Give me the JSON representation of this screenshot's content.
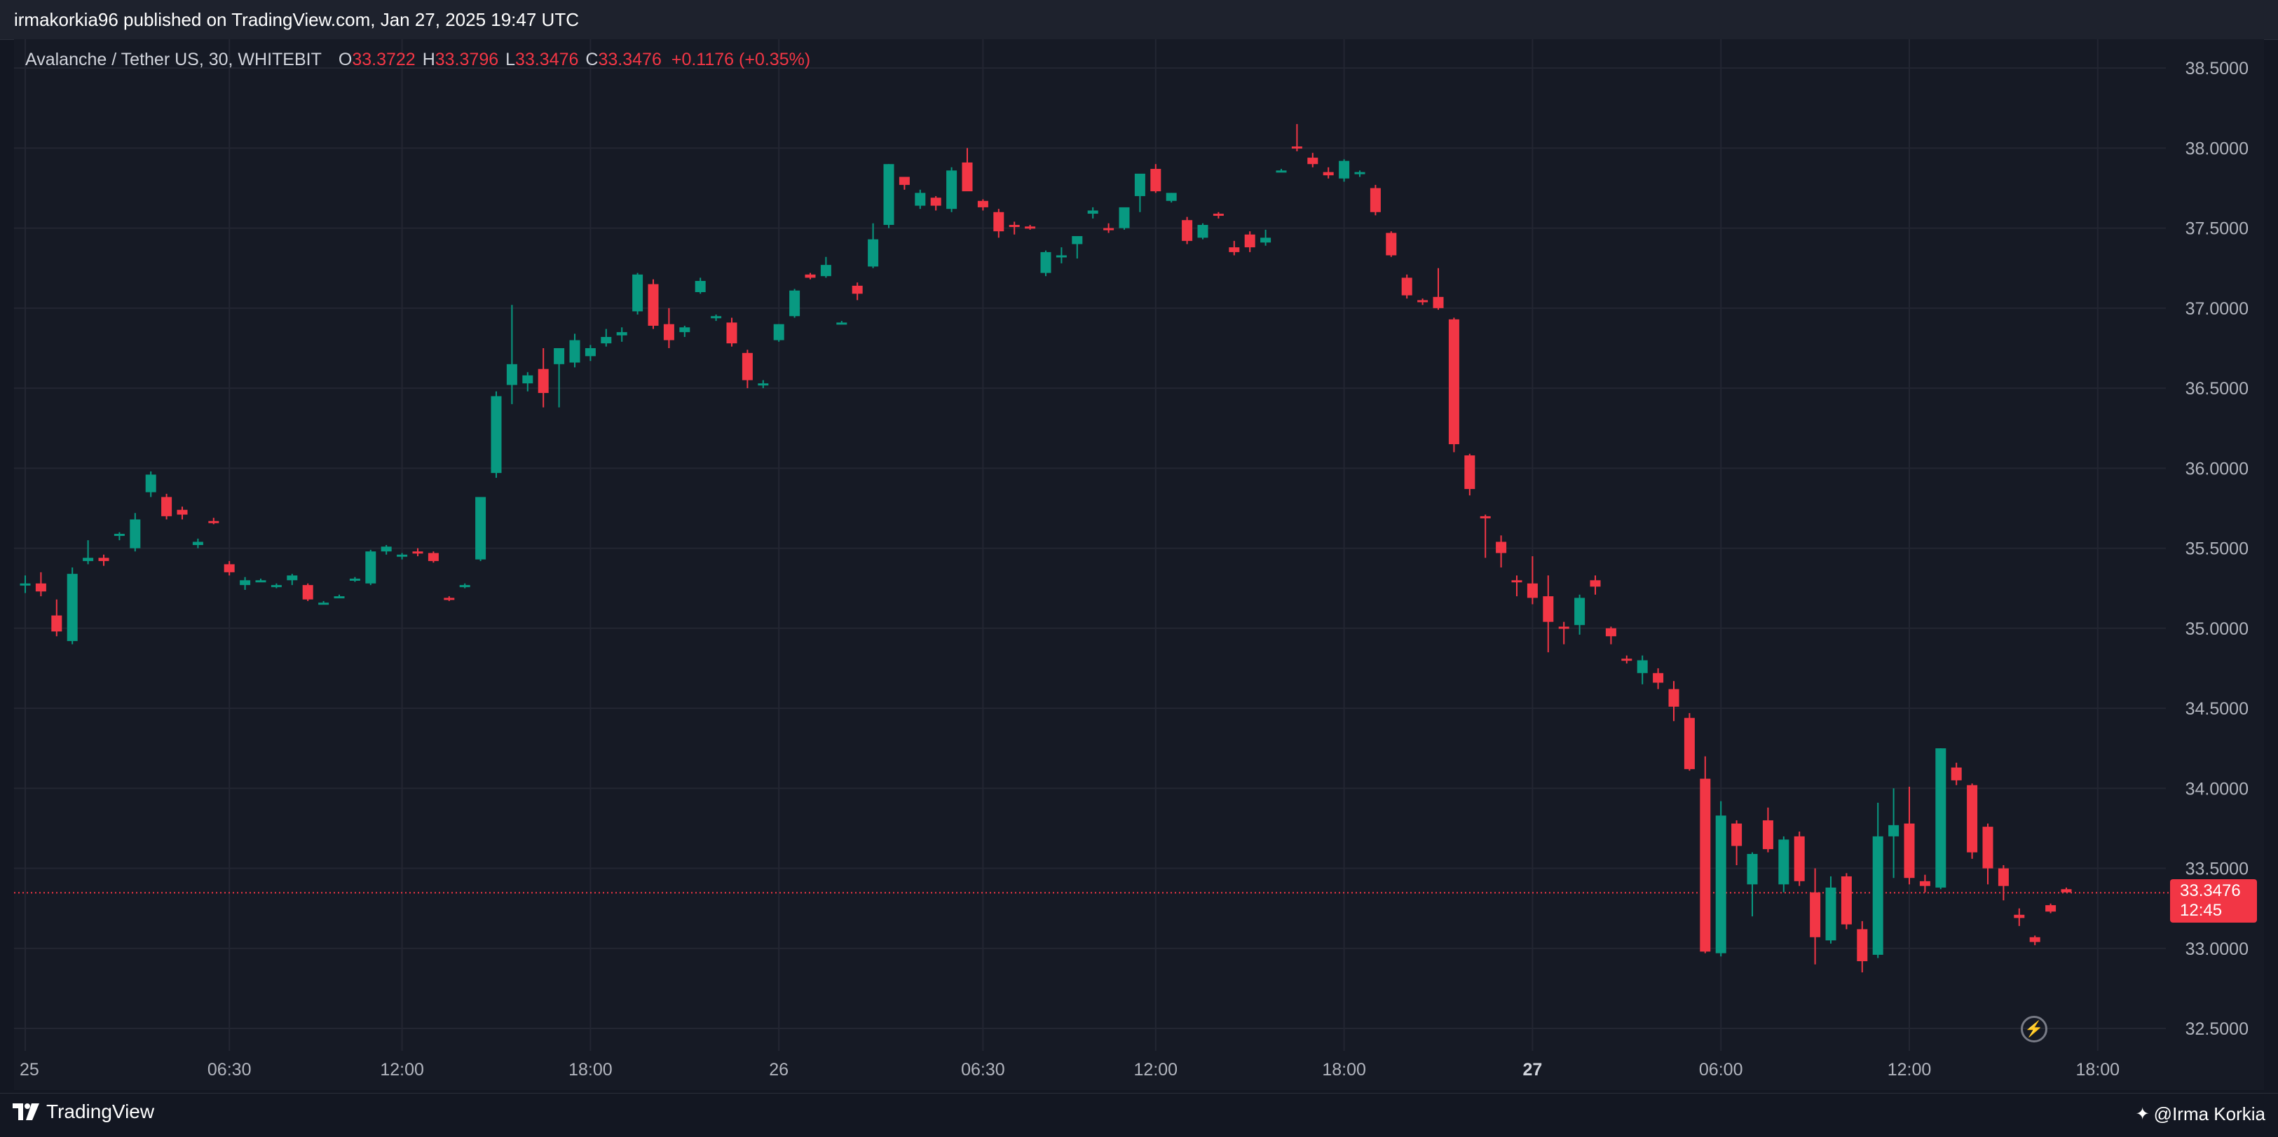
{
  "publish_bar": {
    "text": "irmakorkia96 published on TradingView.com, Jan 27, 2025 19:47 UTC"
  },
  "legend": {
    "symbol": "Avalanche / Tether US, 30, WHITEBIT",
    "open_label": "O",
    "open_value": "33.3722",
    "high_label": "H",
    "high_value": "33.3796",
    "low_label": "L",
    "low_value": "33.3476",
    "close_label": "C",
    "close_value": "33.3476",
    "change": "+0.1176 (+0.35%)"
  },
  "price_tag": {
    "price": "33.3476",
    "countdown": "12:45"
  },
  "footer": {
    "brand": "TradingView",
    "author": "@Irma Korkia"
  },
  "colors": {
    "background": "#131722",
    "up": "#089981",
    "down": "#f23645",
    "grid": "#232632",
    "axis_text": "#b2b5be"
  },
  "icons": {
    "tv_logo": "tradingview-logo-icon",
    "flash": "lightning-icon",
    "author": "star-icon"
  },
  "chart_data": {
    "type": "candlestick",
    "symbol": "Avalanche / Tether US",
    "interval": "30",
    "exchange": "WHITEBIT",
    "y_axis": {
      "ticks": [
        "38.5000",
        "38.0000",
        "37.5000",
        "37.0000",
        "36.5000",
        "36.0000",
        "35.5000",
        "35.0000",
        "34.5000",
        "34.0000",
        "33.5000",
        "33.0000",
        "32.5000"
      ],
      "range": [
        32.36,
        38.68
      ]
    },
    "x_axis": {
      "ticks": [
        {
          "label": "25",
          "bar": 0,
          "bold": false
        },
        {
          "label": "06:30",
          "bar": 13,
          "bold": false
        },
        {
          "label": "12:00",
          "bar": 24,
          "bold": false
        },
        {
          "label": "18:00",
          "bar": 36,
          "bold": false
        },
        {
          "label": "26",
          "bar": 48,
          "bold": false
        },
        {
          "label": "06:30",
          "bar": 61,
          "bold": false
        },
        {
          "label": "12:00",
          "bar": 72,
          "bold": false
        },
        {
          "label": "18:00",
          "bar": 84,
          "bold": false
        },
        {
          "label": "27",
          "bar": 96,
          "bold": true
        },
        {
          "label": "06:00",
          "bar": 108,
          "bold": false
        },
        {
          "label": "12:00",
          "bar": 120,
          "bold": false
        },
        {
          "label": "18:00",
          "bar": 132,
          "bold": false
        }
      ]
    },
    "current_price": 33.3476,
    "candles": [
      [
        35.27,
        35.33,
        35.22,
        35.28
      ],
      [
        35.28,
        35.35,
        35.2,
        35.23
      ],
      [
        35.08,
        35.18,
        34.95,
        34.98
      ],
      [
        34.92,
        35.38,
        34.9,
        35.34
      ],
      [
        35.42,
        35.55,
        35.4,
        35.44
      ],
      [
        35.44,
        35.46,
        35.39,
        35.42
      ],
      [
        35.58,
        35.6,
        35.55,
        35.59
      ],
      [
        35.5,
        35.72,
        35.48,
        35.68
      ],
      [
        35.85,
        35.98,
        35.82,
        35.96
      ],
      [
        35.82,
        35.84,
        35.68,
        35.7
      ],
      [
        35.74,
        35.76,
        35.68,
        35.71
      ],
      [
        35.52,
        35.56,
        35.5,
        35.54
      ],
      [
        35.67,
        35.69,
        35.65,
        35.66
      ],
      [
        35.4,
        35.42,
        35.33,
        35.35
      ],
      [
        35.27,
        35.32,
        35.24,
        35.3
      ],
      [
        35.3,
        35.31,
        35.29,
        35.3
      ],
      [
        35.26,
        35.28,
        35.25,
        35.27
      ],
      [
        35.3,
        35.34,
        35.27,
        35.33
      ],
      [
        35.27,
        35.28,
        35.17,
        35.18
      ],
      [
        35.16,
        35.17,
        35.15,
        35.16
      ],
      [
        35.2,
        35.21,
        35.19,
        35.2
      ],
      [
        35.3,
        35.32,
        35.29,
        35.31
      ],
      [
        35.28,
        35.49,
        35.27,
        35.48
      ],
      [
        35.48,
        35.52,
        35.46,
        35.51
      ],
      [
        35.45,
        35.47,
        35.43,
        35.46
      ],
      [
        35.48,
        35.5,
        35.45,
        35.47
      ],
      [
        35.47,
        35.48,
        35.41,
        35.42
      ],
      [
        35.19,
        35.2,
        35.17,
        35.18
      ],
      [
        35.26,
        35.28,
        35.25,
        35.27
      ],
      [
        35.43,
        35.82,
        35.42,
        35.82
      ],
      [
        35.97,
        36.48,
        35.94,
        36.45
      ],
      [
        36.52,
        37.02,
        36.4,
        36.65
      ],
      [
        36.53,
        36.6,
        36.48,
        36.58
      ],
      [
        36.62,
        36.75,
        36.38,
        36.47
      ],
      [
        36.65,
        36.73,
        36.38,
        36.75
      ],
      [
        36.66,
        36.84,
        36.63,
        36.8
      ],
      [
        36.7,
        36.77,
        36.67,
        36.75
      ],
      [
        36.78,
        36.87,
        36.76,
        36.82
      ],
      [
        36.83,
        36.88,
        36.79,
        36.85
      ],
      [
        36.98,
        37.22,
        36.96,
        37.21
      ],
      [
        37.15,
        37.18,
        36.87,
        36.89
      ],
      [
        36.9,
        37.0,
        36.75,
        36.8
      ],
      [
        36.85,
        36.89,
        36.82,
        36.88
      ],
      [
        37.1,
        37.19,
        37.09,
        37.17
      ],
      [
        36.94,
        36.96,
        36.92,
        36.95
      ],
      [
        36.91,
        36.94,
        36.76,
        36.78
      ],
      [
        36.72,
        36.74,
        36.5,
        36.55
      ],
      [
        36.52,
        36.55,
        36.5,
        36.53
      ],
      [
        36.8,
        36.9,
        36.79,
        36.9
      ],
      [
        36.95,
        37.12,
        36.94,
        37.11
      ],
      [
        37.21,
        37.22,
        37.18,
        37.19
      ],
      [
        37.2,
        37.32,
        37.19,
        37.27
      ],
      [
        36.91,
        36.92,
        36.91,
        36.91
      ],
      [
        37.14,
        37.16,
        37.05,
        37.09
      ],
      [
        37.26,
        37.53,
        37.25,
        37.43
      ],
      [
        37.52,
        37.9,
        37.5,
        37.9
      ],
      [
        37.82,
        37.82,
        37.74,
        37.77
      ],
      [
        37.64,
        37.74,
        37.62,
        37.72
      ],
      [
        37.69,
        37.7,
        37.61,
        37.64
      ],
      [
        37.62,
        37.88,
        37.6,
        37.86
      ],
      [
        37.91,
        38.0,
        37.74,
        37.73
      ],
      [
        37.67,
        37.68,
        37.61,
        37.63
      ],
      [
        37.6,
        37.62,
        37.44,
        37.48
      ],
      [
        37.52,
        37.54,
        37.46,
        37.51
      ],
      [
        37.51,
        37.52,
        37.49,
        37.5
      ],
      [
        37.22,
        37.36,
        37.2,
        37.35
      ],
      [
        37.32,
        37.38,
        37.28,
        37.33
      ],
      [
        37.4,
        37.42,
        37.31,
        37.45
      ],
      [
        37.59,
        37.63,
        37.56,
        37.61
      ],
      [
        37.5,
        37.53,
        37.47,
        37.49
      ],
      [
        37.5,
        37.62,
        37.49,
        37.63
      ],
      [
        37.7,
        37.82,
        37.6,
        37.84
      ],
      [
        37.87,
        37.9,
        37.72,
        37.73
      ],
      [
        37.67,
        37.72,
        37.66,
        37.72
      ],
      [
        37.55,
        37.57,
        37.4,
        37.42
      ],
      [
        37.44,
        37.53,
        37.43,
        37.52
      ],
      [
        37.59,
        37.6,
        37.56,
        37.58
      ],
      [
        37.38,
        37.42,
        37.33,
        37.35
      ],
      [
        37.46,
        37.48,
        37.35,
        37.38
      ],
      [
        37.41,
        37.49,
        37.39,
        37.44
      ],
      [
        37.86,
        37.87,
        37.85,
        37.86
      ],
      [
        38.01,
        38.15,
        37.98,
        38.0
      ],
      [
        37.94,
        37.97,
        37.88,
        37.9
      ],
      [
        37.85,
        37.88,
        37.81,
        37.83
      ],
      [
        37.81,
        37.93,
        37.79,
        37.92
      ],
      [
        37.84,
        37.86,
        37.82,
        37.85
      ],
      [
        37.75,
        37.77,
        37.58,
        37.6
      ],
      [
        37.47,
        37.48,
        37.32,
        37.33
      ],
      [
        37.19,
        37.21,
        37.06,
        37.08
      ],
      [
        37.05,
        37.06,
        37.02,
        37.04
      ],
      [
        37.07,
        37.25,
        36.99,
        37.0
      ],
      [
        36.93,
        36.94,
        36.1,
        36.15
      ],
      [
        36.08,
        36.09,
        35.83,
        35.87
      ],
      [
        35.7,
        35.71,
        35.44,
        35.69
      ],
      [
        35.54,
        35.58,
        35.38,
        35.47
      ],
      [
        35.3,
        35.33,
        35.2,
        35.29
      ],
      [
        35.28,
        35.45,
        35.15,
        35.19
      ],
      [
        35.2,
        35.33,
        34.85,
        35.04
      ],
      [
        35.01,
        35.04,
        34.9,
        35.0
      ],
      [
        35.02,
        35.21,
        34.96,
        35.19
      ],
      [
        35.3,
        35.33,
        35.21,
        35.26
      ],
      [
        35.0,
        35.01,
        34.9,
        34.95
      ],
      [
        34.81,
        34.83,
        34.78,
        34.8
      ],
      [
        34.72,
        34.83,
        34.65,
        34.8
      ],
      [
        34.72,
        34.75,
        34.62,
        34.66
      ],
      [
        34.62,
        34.67,
        34.42,
        34.51
      ],
      [
        34.44,
        34.47,
        34.11,
        34.12
      ],
      [
        34.06,
        34.2,
        32.97,
        32.98
      ],
      [
        32.97,
        33.92,
        32.95,
        33.83
      ],
      [
        33.78,
        33.8,
        33.52,
        33.64
      ],
      [
        33.4,
        33.6,
        33.2,
        33.59
      ],
      [
        33.8,
        33.88,
        33.6,
        33.62
      ],
      [
        33.4,
        33.7,
        33.35,
        33.68
      ],
      [
        33.7,
        33.73,
        33.39,
        33.42
      ],
      [
        33.35,
        33.5,
        32.9,
        33.07
      ],
      [
        33.05,
        33.45,
        33.03,
        33.38
      ],
      [
        33.45,
        33.47,
        33.12,
        33.15
      ],
      [
        33.12,
        33.17,
        32.85,
        32.92
      ],
      [
        32.96,
        33.91,
        32.94,
        33.7
      ],
      [
        33.7,
        34.0,
        33.44,
        33.77
      ],
      [
        33.78,
        34.01,
        33.4,
        33.44
      ],
      [
        33.42,
        33.46,
        33.35,
        33.39
      ],
      [
        33.38,
        34.25,
        33.37,
        34.25
      ],
      [
        34.13,
        34.16,
        34.02,
        34.05
      ],
      [
        34.02,
        34.03,
        33.56,
        33.6
      ],
      [
        33.76,
        33.78,
        33.4,
        33.5
      ],
      [
        33.5,
        33.52,
        33.3,
        33.39
      ],
      [
        33.21,
        33.25,
        33.14,
        33.19
      ],
      [
        33.07,
        33.08,
        33.02,
        33.04
      ],
      [
        33.27,
        33.28,
        33.22,
        33.23
      ],
      [
        33.37,
        33.38,
        33.35,
        33.35
      ]
    ]
  }
}
